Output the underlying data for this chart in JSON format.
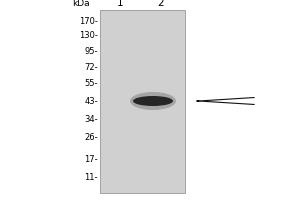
{
  "kda_label": "kDa",
  "lane_labels": [
    "1",
    "2"
  ],
  "mw_markers": [
    170,
    130,
    95,
    72,
    55,
    43,
    34,
    26,
    17,
    11
  ],
  "gel_bg_color": "#d0d0d0",
  "band_color": "#1c1c1c",
  "arrow_color": "#111111",
  "bg_color": "#ffffff",
  "font_size_kda": 6.5,
  "font_size_markers": 6.0,
  "font_size_lanes": 7.5
}
